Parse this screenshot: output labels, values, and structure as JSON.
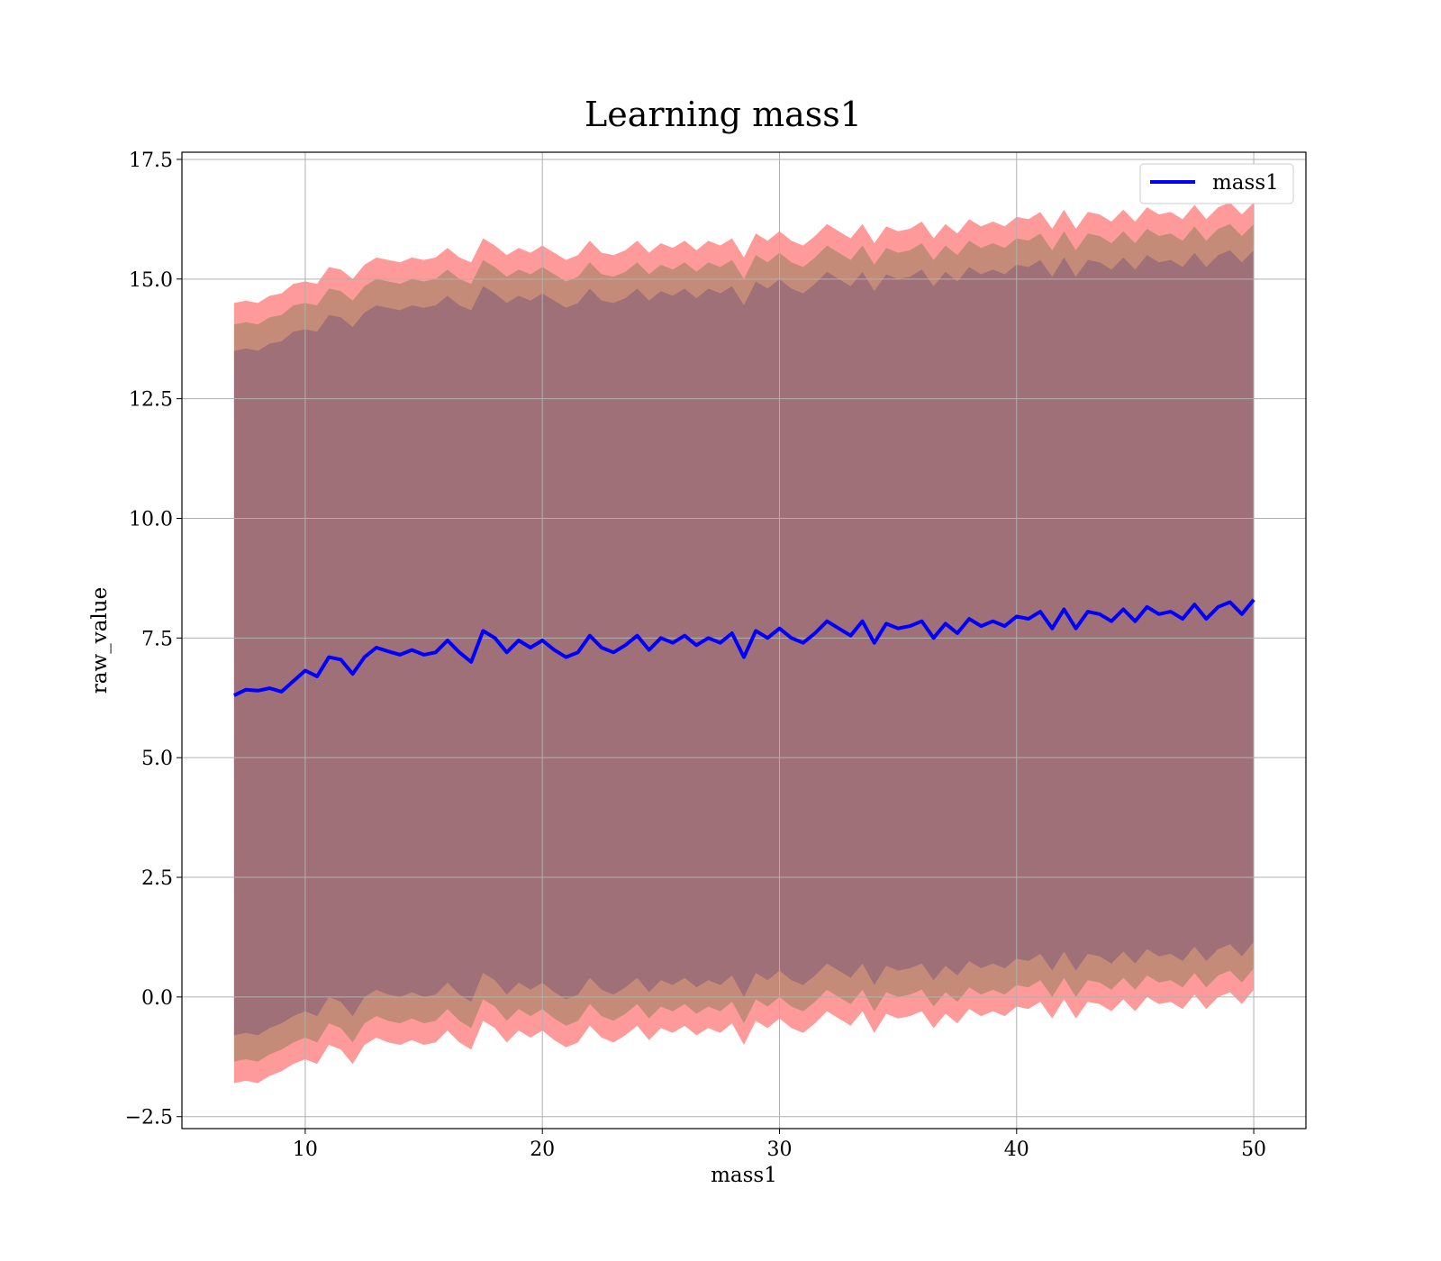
{
  "chart_data": {
    "type": "line",
    "title": "Learning mass1",
    "xlabel": "mass1",
    "ylabel": "raw_value",
    "xlim": [
      4.8,
      52.2
    ],
    "ylim": [
      -2.75,
      17.65
    ],
    "x_ticks": [
      10,
      20,
      30,
      40,
      50
    ],
    "x_tick_labels": [
      "10",
      "20",
      "30",
      "40",
      "50"
    ],
    "y_ticks": [
      -2.5,
      0.0,
      2.5,
      5.0,
      7.5,
      10.0,
      12.5,
      15.0,
      17.5
    ],
    "y_tick_labels": [
      "−2.5",
      "0.0",
      "2.5",
      "5.0",
      "7.5",
      "10.0",
      "12.5",
      "15.0",
      "17.5"
    ],
    "grid": true,
    "legend": {
      "position": "top-right",
      "entries": [
        "mass1"
      ]
    },
    "colors": {
      "line": "#0000ff",
      "outer_band": "#ff9a9a",
      "middle_band": "#c48c78",
      "inner_band": "#a07078",
      "grid": "#b0b0b0"
    },
    "series": [
      {
        "name": "mass1",
        "x": [
          7.0,
          7.5,
          8.0,
          8.5,
          9.0,
          9.5,
          10.0,
          10.5,
          11.0,
          11.5,
          12.0,
          12.5,
          13.0,
          13.5,
          14.0,
          14.5,
          15.0,
          15.5,
          16.0,
          16.5,
          17.0,
          17.5,
          18.0,
          18.5,
          19.0,
          19.5,
          20.0,
          20.5,
          21.0,
          21.5,
          22.0,
          22.5,
          23.0,
          23.5,
          24.0,
          24.5,
          25.0,
          25.5,
          26.0,
          26.5,
          27.0,
          27.5,
          28.0,
          28.5,
          29.0,
          29.5,
          30.0,
          30.5,
          31.0,
          31.5,
          32.0,
          32.5,
          33.0,
          33.5,
          34.0,
          34.5,
          35.0,
          35.5,
          36.0,
          36.5,
          37.0,
          37.5,
          38.0,
          38.5,
          39.0,
          39.5,
          40.0,
          40.5,
          41.0,
          41.5,
          42.0,
          42.5,
          43.0,
          43.5,
          44.0,
          44.5,
          45.0,
          45.5,
          46.0,
          46.5,
          47.0,
          47.5,
          48.0,
          48.5,
          49.0,
          49.5,
          50.0
        ],
        "mean": [
          6.3,
          6.42,
          6.4,
          6.45,
          6.38,
          6.6,
          6.82,
          6.7,
          7.1,
          7.05,
          6.75,
          7.1,
          7.3,
          7.22,
          7.15,
          7.25,
          7.15,
          7.2,
          7.45,
          7.2,
          7.0,
          7.65,
          7.5,
          7.2,
          7.45,
          7.3,
          7.45,
          7.25,
          7.1,
          7.2,
          7.55,
          7.3,
          7.2,
          7.35,
          7.55,
          7.25,
          7.5,
          7.4,
          7.55,
          7.35,
          7.5,
          7.4,
          7.6,
          7.1,
          7.65,
          7.5,
          7.7,
          7.5,
          7.4,
          7.6,
          7.85,
          7.7,
          7.55,
          7.85,
          7.4,
          7.8,
          7.7,
          7.75,
          7.85,
          7.5,
          7.8,
          7.6,
          7.9,
          7.75,
          7.85,
          7.75,
          7.95,
          7.9,
          8.05,
          7.7,
          8.1,
          7.7,
          8.05,
          8.0,
          7.85,
          8.1,
          7.85,
          8.15,
          8.0,
          8.05,
          7.9,
          8.2,
          7.9,
          8.15,
          8.25,
          8.0,
          8.3
        ],
        "outer_upper": [
          14.5,
          14.55,
          14.5,
          14.65,
          14.7,
          14.9,
          14.95,
          14.9,
          15.25,
          15.2,
          15.0,
          15.3,
          15.45,
          15.4,
          15.35,
          15.45,
          15.4,
          15.45,
          15.65,
          15.45,
          15.35,
          15.85,
          15.7,
          15.5,
          15.65,
          15.55,
          15.7,
          15.55,
          15.4,
          15.5,
          15.8,
          15.55,
          15.5,
          15.6,
          15.8,
          15.55,
          15.75,
          15.65,
          15.8,
          15.6,
          15.8,
          15.7,
          15.85,
          15.45,
          15.95,
          15.8,
          16.0,
          15.8,
          15.7,
          15.9,
          16.15,
          16.0,
          15.85,
          16.15,
          15.75,
          16.1,
          16.0,
          16.05,
          16.2,
          15.85,
          16.15,
          15.95,
          16.25,
          16.1,
          16.2,
          16.1,
          16.3,
          16.25,
          16.4,
          16.05,
          16.45,
          16.05,
          16.4,
          16.35,
          16.2,
          16.45,
          16.2,
          16.5,
          16.35,
          16.4,
          16.25,
          16.55,
          16.25,
          16.5,
          16.6,
          16.35,
          16.6
        ],
        "outer_lower": [
          -1.8,
          -1.75,
          -1.8,
          -1.65,
          -1.55,
          -1.4,
          -1.3,
          -1.4,
          -1.0,
          -1.1,
          -1.4,
          -1.0,
          -0.85,
          -0.95,
          -1.0,
          -0.9,
          -1.0,
          -0.95,
          -0.7,
          -0.95,
          -1.1,
          -0.5,
          -0.65,
          -0.95,
          -0.7,
          -0.85,
          -0.7,
          -0.9,
          -1.05,
          -0.95,
          -0.6,
          -0.85,
          -0.95,
          -0.8,
          -0.6,
          -0.9,
          -0.65,
          -0.75,
          -0.6,
          -0.8,
          -0.65,
          -0.75,
          -0.55,
          -1.0,
          -0.5,
          -0.65,
          -0.45,
          -0.65,
          -0.75,
          -0.55,
          -0.3,
          -0.45,
          -0.6,
          -0.3,
          -0.75,
          -0.35,
          -0.45,
          -0.4,
          -0.3,
          -0.65,
          -0.35,
          -0.55,
          -0.25,
          -0.4,
          -0.3,
          -0.4,
          -0.2,
          -0.25,
          -0.1,
          -0.45,
          -0.05,
          -0.45,
          -0.1,
          -0.15,
          -0.3,
          -0.05,
          -0.3,
          0.0,
          -0.15,
          -0.1,
          -0.25,
          0.05,
          -0.25,
          0.0,
          0.1,
          -0.15,
          0.15
        ],
        "middle_upper": [
          14.05,
          14.1,
          14.05,
          14.2,
          14.25,
          14.45,
          14.5,
          14.45,
          14.8,
          14.75,
          14.55,
          14.85,
          15.0,
          14.95,
          14.9,
          15.0,
          14.95,
          15.0,
          15.2,
          15.0,
          14.9,
          15.4,
          15.25,
          15.05,
          15.2,
          15.1,
          15.25,
          15.1,
          14.95,
          15.05,
          15.35,
          15.1,
          15.05,
          15.15,
          15.35,
          15.1,
          15.3,
          15.2,
          15.35,
          15.15,
          15.35,
          15.25,
          15.4,
          15.0,
          15.5,
          15.35,
          15.55,
          15.35,
          15.25,
          15.45,
          15.7,
          15.55,
          15.4,
          15.7,
          15.3,
          15.65,
          15.55,
          15.6,
          15.75,
          15.4,
          15.7,
          15.5,
          15.8,
          15.65,
          15.75,
          15.65,
          15.85,
          15.8,
          15.95,
          15.6,
          16.0,
          15.6,
          15.95,
          15.9,
          15.75,
          16.0,
          15.75,
          16.05,
          15.9,
          15.95,
          15.8,
          16.1,
          15.8,
          16.05,
          16.15,
          15.9,
          16.15
        ],
        "middle_lower": [
          -1.35,
          -1.3,
          -1.35,
          -1.2,
          -1.1,
          -0.95,
          -0.85,
          -0.95,
          -0.55,
          -0.65,
          -0.95,
          -0.55,
          -0.4,
          -0.5,
          -0.55,
          -0.45,
          -0.55,
          -0.5,
          -0.25,
          -0.5,
          -0.65,
          -0.05,
          -0.2,
          -0.5,
          -0.25,
          -0.4,
          -0.25,
          -0.45,
          -0.6,
          -0.5,
          -0.15,
          -0.4,
          -0.5,
          -0.35,
          -0.15,
          -0.45,
          -0.2,
          -0.3,
          -0.15,
          -0.35,
          -0.2,
          -0.3,
          -0.1,
          -0.55,
          -0.05,
          -0.2,
          0.0,
          -0.2,
          -0.3,
          -0.1,
          0.15,
          0.0,
          -0.15,
          0.15,
          -0.3,
          0.1,
          0.0,
          0.05,
          0.15,
          -0.2,
          0.1,
          -0.1,
          0.2,
          0.05,
          0.15,
          0.05,
          0.25,
          0.2,
          0.35,
          0.0,
          0.4,
          0.0,
          0.35,
          0.3,
          0.15,
          0.4,
          0.15,
          0.45,
          0.3,
          0.35,
          0.2,
          0.5,
          0.2,
          0.45,
          0.55,
          0.3,
          0.6
        ],
        "inner_upper": [
          13.5,
          13.55,
          13.5,
          13.65,
          13.7,
          13.9,
          13.95,
          13.9,
          14.25,
          14.2,
          14.0,
          14.3,
          14.45,
          14.4,
          14.35,
          14.45,
          14.4,
          14.45,
          14.65,
          14.45,
          14.35,
          14.85,
          14.7,
          14.5,
          14.65,
          14.55,
          14.7,
          14.55,
          14.4,
          14.5,
          14.8,
          14.55,
          14.5,
          14.6,
          14.8,
          14.55,
          14.75,
          14.65,
          14.8,
          14.6,
          14.8,
          14.7,
          14.85,
          14.45,
          14.95,
          14.8,
          15.0,
          14.8,
          14.7,
          14.9,
          15.15,
          15.0,
          14.85,
          15.15,
          14.75,
          15.1,
          15.0,
          15.05,
          15.2,
          14.85,
          15.15,
          14.95,
          15.25,
          15.1,
          15.2,
          15.1,
          15.3,
          15.25,
          15.4,
          15.05,
          15.45,
          15.05,
          15.4,
          15.35,
          15.2,
          15.45,
          15.2,
          15.5,
          15.35,
          15.4,
          15.25,
          15.55,
          15.25,
          15.5,
          15.6,
          15.35,
          15.6
        ],
        "inner_lower": [
          -0.8,
          -0.75,
          -0.8,
          -0.65,
          -0.55,
          -0.4,
          -0.3,
          -0.4,
          0.0,
          -0.1,
          -0.4,
          0.0,
          0.15,
          0.05,
          0.0,
          0.1,
          0.0,
          0.05,
          0.3,
          0.05,
          -0.1,
          0.5,
          0.35,
          0.05,
          0.3,
          0.15,
          0.3,
          0.1,
          -0.05,
          0.05,
          0.4,
          0.15,
          0.05,
          0.2,
          0.4,
          0.1,
          0.35,
          0.25,
          0.4,
          0.2,
          0.35,
          0.25,
          0.45,
          0.0,
          0.5,
          0.35,
          0.55,
          0.35,
          0.25,
          0.45,
          0.7,
          0.55,
          0.4,
          0.7,
          0.25,
          0.65,
          0.55,
          0.6,
          0.7,
          0.35,
          0.65,
          0.45,
          0.75,
          0.6,
          0.7,
          0.6,
          0.8,
          0.75,
          0.9,
          0.55,
          0.95,
          0.55,
          0.9,
          0.85,
          0.7,
          0.95,
          0.7,
          1.0,
          0.85,
          0.9,
          0.75,
          1.05,
          0.75,
          1.0,
          1.1,
          0.85,
          1.15
        ]
      }
    ]
  }
}
